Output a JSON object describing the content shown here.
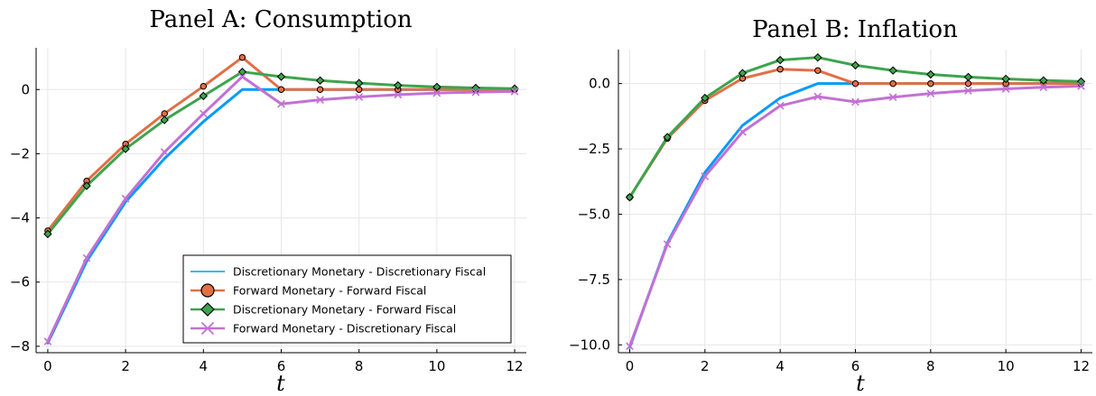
{
  "chart_data": [
    {
      "type": "line",
      "title": "Panel A: Consumption",
      "xlabel": "t",
      "ylabel": "",
      "xlim": [
        -0.3,
        12.3
      ],
      "ylim": [
        -8.2,
        1.3
      ],
      "xticks": [
        0,
        2,
        4,
        6,
        8,
        10,
        12
      ],
      "xtick_labels": [
        "0",
        "2",
        "4",
        "6",
        "8",
        "10",
        "12"
      ],
      "yticks": [
        -8,
        -6,
        -4,
        -2,
        0
      ],
      "ytick_labels": [
        "−8",
        "−6",
        "−4",
        "−2",
        "0"
      ],
      "grid": true,
      "legend_position": "bottom-right",
      "x": [
        0,
        1,
        2,
        3,
        4,
        5,
        6,
        7,
        8,
        9,
        10,
        11,
        12
      ],
      "series": [
        {
          "name": "Discretionary Monetary - Discretionary Fiscal",
          "color": "#009AFA",
          "marker": "none",
          "values": [
            -7.9,
            -5.35,
            -3.5,
            -2.15,
            -1.0,
            0.0,
            0.0,
            0.0,
            0.0,
            0.0,
            0.0,
            0.0,
            0.0
          ]
        },
        {
          "name": "Forward Monetary - Forward Fiscal",
          "color": "#E26F46",
          "marker": "circle",
          "values": [
            -4.4,
            -2.85,
            -1.7,
            -0.75,
            0.1,
            1.0,
            0.0,
            0.0,
            0.0,
            0.0,
            0.0,
            0.0,
            0.0
          ]
        },
        {
          "name": "Discretionary Monetary - Forward Fiscal",
          "color": "#3DA44D",
          "marker": "diamond",
          "values": [
            -4.5,
            -3.0,
            -1.85,
            -0.95,
            -0.2,
            0.55,
            0.4,
            0.28,
            0.2,
            0.13,
            0.08,
            0.05,
            0.03
          ]
        },
        {
          "name": "Forward Monetary - Discretionary Fiscal",
          "color": "#C271D2",
          "marker": "cross",
          "values": [
            -7.85,
            -5.25,
            -3.4,
            -1.95,
            -0.75,
            0.4,
            -0.45,
            -0.32,
            -0.23,
            -0.16,
            -0.11,
            -0.08,
            -0.06
          ]
        }
      ]
    },
    {
      "type": "line",
      "title": "Panel B: Inflation",
      "xlabel": "t",
      "ylabel": "",
      "xlim": [
        -0.3,
        12.3
      ],
      "ylim": [
        -10.3,
        1.3
      ],
      "xticks": [
        0,
        2,
        4,
        6,
        8,
        10,
        12
      ],
      "xtick_labels": [
        "0",
        "2",
        "4",
        "6",
        "8",
        "10",
        "12"
      ],
      "yticks": [
        -10,
        -7.5,
        -5,
        -2.5,
        0
      ],
      "ytick_labels": [
        "−10.0",
        "−7.5",
        "−5.0",
        "−2.5",
        "0.0"
      ],
      "grid": true,
      "legend_position": "none",
      "x": [
        0,
        1,
        2,
        3,
        4,
        5,
        6,
        7,
        8,
        9,
        10,
        11,
        12
      ],
      "series": [
        {
          "name": "Discretionary Monetary - Discretionary Fiscal",
          "color": "#009AFA",
          "marker": "none",
          "values": [
            -10.1,
            -6.1,
            -3.4,
            -1.6,
            -0.55,
            0.0,
            0.0,
            0.0,
            0.0,
            0.0,
            0.0,
            0.0,
            0.0
          ]
        },
        {
          "name": "Forward Monetary - Forward Fiscal",
          "color": "#E26F46",
          "marker": "circle",
          "values": [
            -4.35,
            -2.1,
            -0.65,
            0.2,
            0.55,
            0.5,
            0.0,
            0.0,
            0.0,
            0.0,
            0.0,
            0.0,
            0.0
          ]
        },
        {
          "name": "Discretionary Monetary - Forward Fiscal",
          "color": "#3DA44D",
          "marker": "diamond",
          "values": [
            -4.35,
            -2.05,
            -0.55,
            0.4,
            0.9,
            1.0,
            0.7,
            0.5,
            0.35,
            0.25,
            0.18,
            0.12,
            0.08
          ]
        },
        {
          "name": "Forward Monetary - Discretionary Fiscal",
          "color": "#C271D2",
          "marker": "cross",
          "values": [
            -10.05,
            -6.15,
            -3.55,
            -1.85,
            -0.85,
            -0.5,
            -0.7,
            -0.52,
            -0.38,
            -0.27,
            -0.2,
            -0.14,
            -0.1
          ]
        }
      ]
    }
  ]
}
